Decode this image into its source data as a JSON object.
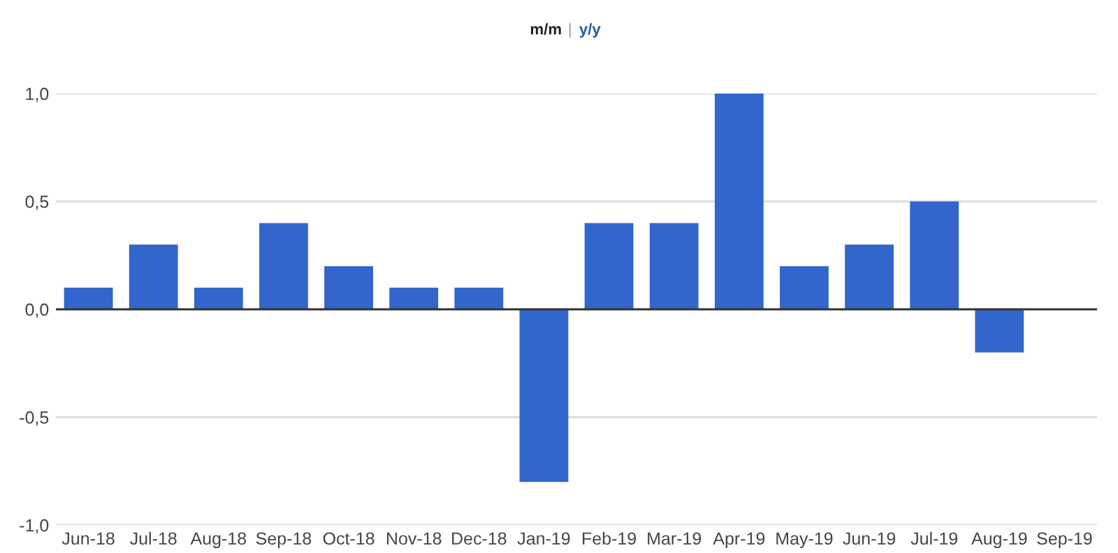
{
  "chart_data": {
    "type": "bar",
    "categories": [
      "Jun-18",
      "Jul-18",
      "Aug-18",
      "Sep-18",
      "Oct-18",
      "Nov-18",
      "Dec-18",
      "Jan-19",
      "Feb-19",
      "Mar-19",
      "Apr-19",
      "May-19",
      "Jun-19",
      "Jul-19",
      "Aug-19",
      "Sep-19"
    ],
    "values": [
      0.1,
      0.3,
      0.1,
      0.4,
      0.2,
      0.1,
      0.1,
      -0.8,
      0.4,
      0.4,
      1.0,
      0.2,
      0.3,
      0.5,
      -0.2,
      null
    ],
    "color": "#3366cc",
    "ylim": [
      -1.0,
      1.0
    ],
    "yticks": [
      {
        "value": -1.0,
        "label": "-1,0"
      },
      {
        "value": -0.5,
        "label": "-0,5"
      },
      {
        "value": 0.0,
        "label": "0,0"
      },
      {
        "value": 0.5,
        "label": "0,5"
      },
      {
        "value": 1.0,
        "label": "1,0"
      }
    ],
    "grid": "y",
    "ref_lines": [
      {
        "axis": "y",
        "value": 0,
        "color": "#333333"
      }
    ],
    "annotations": [
      "m/m",
      "|",
      "y/y"
    ]
  }
}
